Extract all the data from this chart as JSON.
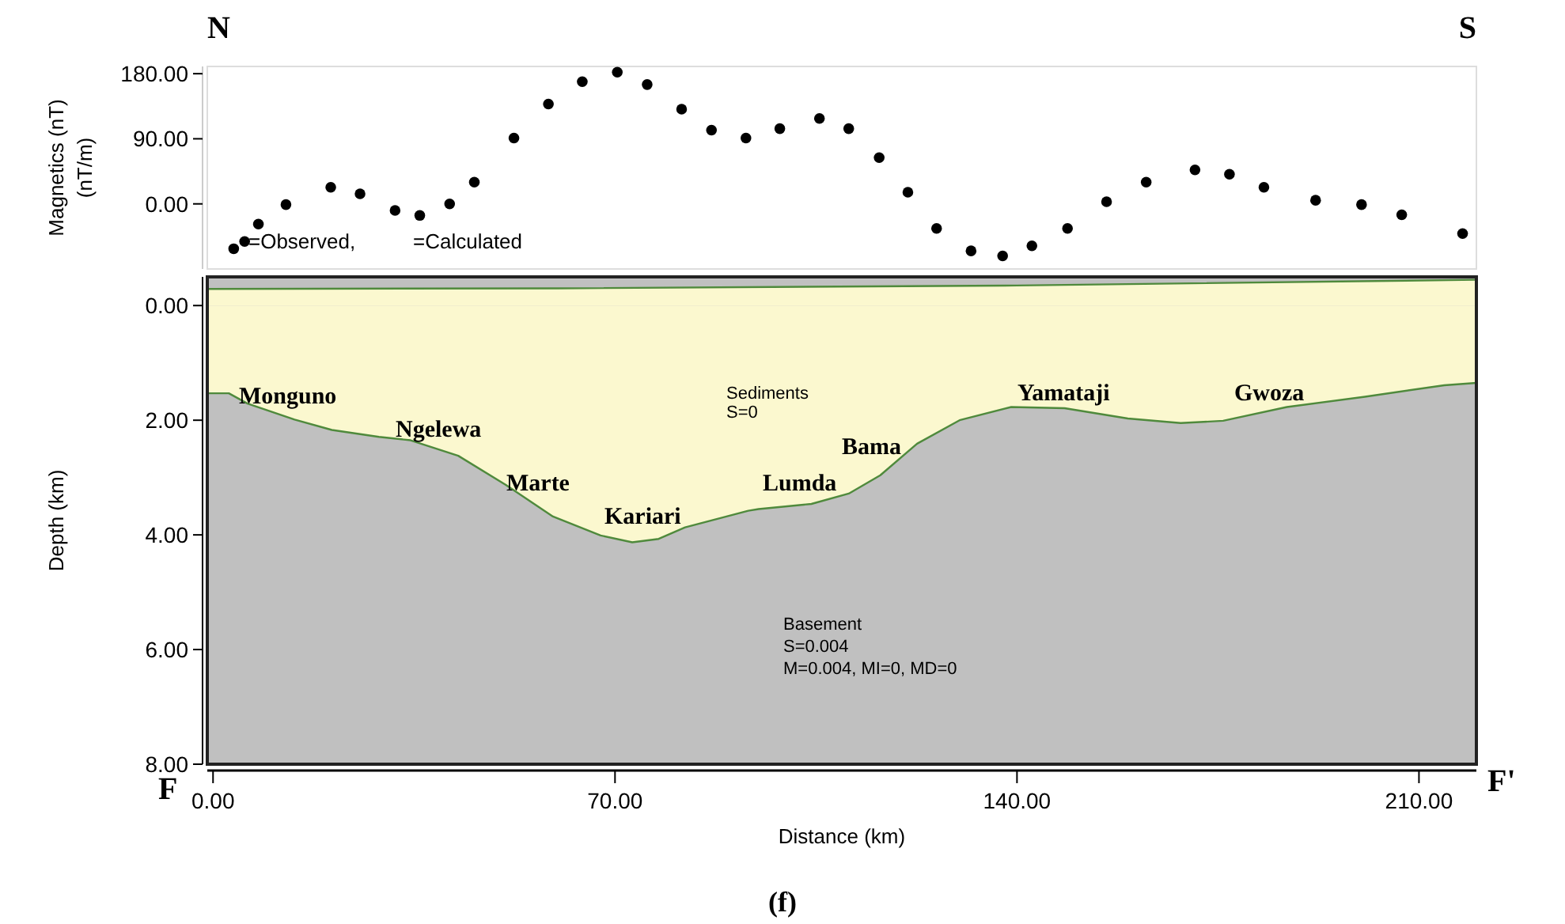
{
  "chart_data": [
    {
      "type": "scatter",
      "ylabel": "Magnetics (nT)\n(nT/m)",
      "xlim": [
        -1,
        220
      ],
      "ylim": [
        -90,
        190
      ],
      "yticks": [
        {
          "value": 0,
          "label": "0.00"
        },
        {
          "value": 90,
          "label": "90.00"
        },
        {
          "value": 180,
          "label": "180.00"
        }
      ],
      "tick_labels": "y",
      "marker": "circle",
      "grid": false,
      "series": [
        {
          "color": "#000000",
          "x": [
            3.6,
            5.5,
            7.9,
            12.7,
            20.5,
            25.6,
            31.7,
            36,
            41.2,
            45.5,
            52.4,
            58.4,
            64.3,
            70.4,
            75.6,
            81.6,
            86.8,
            92.8,
            98.7,
            105.6,
            110.7,
            116,
            121,
            126,
            132,
            137.5,
            142.6,
            148.8,
            155.6,
            162.5,
            171,
            177,
            183,
            192,
            200,
            207,
            217.6
          ],
          "values": [
            -62,
            -52,
            -28,
            -1,
            23,
            14,
            -9,
            -16,
            0,
            30,
            91,
            138,
            169,
            182,
            165,
            131,
            102,
            91,
            104,
            118,
            104,
            64,
            16,
            -34,
            -65,
            -72,
            -58,
            -34,
            3,
            30,
            47,
            41,
            23,
            5,
            -1,
            -15,
            -41
          ]
        }
      ],
      "annotations": [
        "N",
        "S",
        "=Observed,",
        "=Calculated"
      ]
    },
    {
      "type": "area",
      "xlabel": "Distance (km)",
      "ylabel": "Depth (km)",
      "xlim": [
        -1,
        220
      ],
      "ylim": [
        8,
        -0.5
      ],
      "grid": false,
      "xticks": [
        {
          "value": 0,
          "label": "0.00"
        },
        {
          "value": 70,
          "label": "70.00"
        },
        {
          "value": 140,
          "label": "140.00"
        },
        {
          "value": 210,
          "label": "210.00"
        }
      ],
      "yticks": [
        {
          "value": 0,
          "label": "0.00"
        },
        {
          "value": 2,
          "label": "2.00"
        },
        {
          "value": 4,
          "label": "4.00"
        },
        {
          "value": 6,
          "label": "6.00"
        },
        {
          "value": 8,
          "label": "8.00"
        }
      ],
      "series": [
        {
          "color": "#fbf8cf",
          "x": [
            -1,
            60,
            140,
            220
          ],
          "values": [
            -0.29,
            -0.3,
            -0.35,
            -0.45
          ]
        },
        {
          "color": "#fbf8cf",
          "x": [
            -1,
            2.75,
            6,
            14.2,
            20.7,
            28.9,
            34.4,
            42.7,
            51,
            59.2,
            67.5,
            73,
            77.6,
            82.2,
            93.2,
            95,
            104.2,
            110.7,
            116.2,
            122.6,
            130,
            139,
            148.3,
            159.3,
            168.5,
            175.9,
            187,
            200.6,
            214.4,
            220
          ],
          "values": [
            1.53,
            1.53,
            1.71,
            1.99,
            2.17,
            2.29,
            2.35,
            2.62,
            3.13,
            3.68,
            4.01,
            4.13,
            4.07,
            3.87,
            3.58,
            3.55,
            3.46,
            3.28,
            2.96,
            2.41,
            2,
            1.77,
            1.79,
            1.97,
            2.05,
            2.01,
            1.77,
            1.59,
            1.39,
            1.35
          ]
        }
      ],
      "annotations": [
        "Monguno",
        "Ngelewa",
        "Marte",
        "Kariari",
        "Lumda",
        "Bama",
        "Yamataji",
        "Gwoza",
        "Sediments",
        "S=0",
        "Basement",
        "S=0.004",
        "M=0.004, MI=0, MD=0",
        "F",
        "F'",
        "(f)"
      ]
    }
  ]
}
